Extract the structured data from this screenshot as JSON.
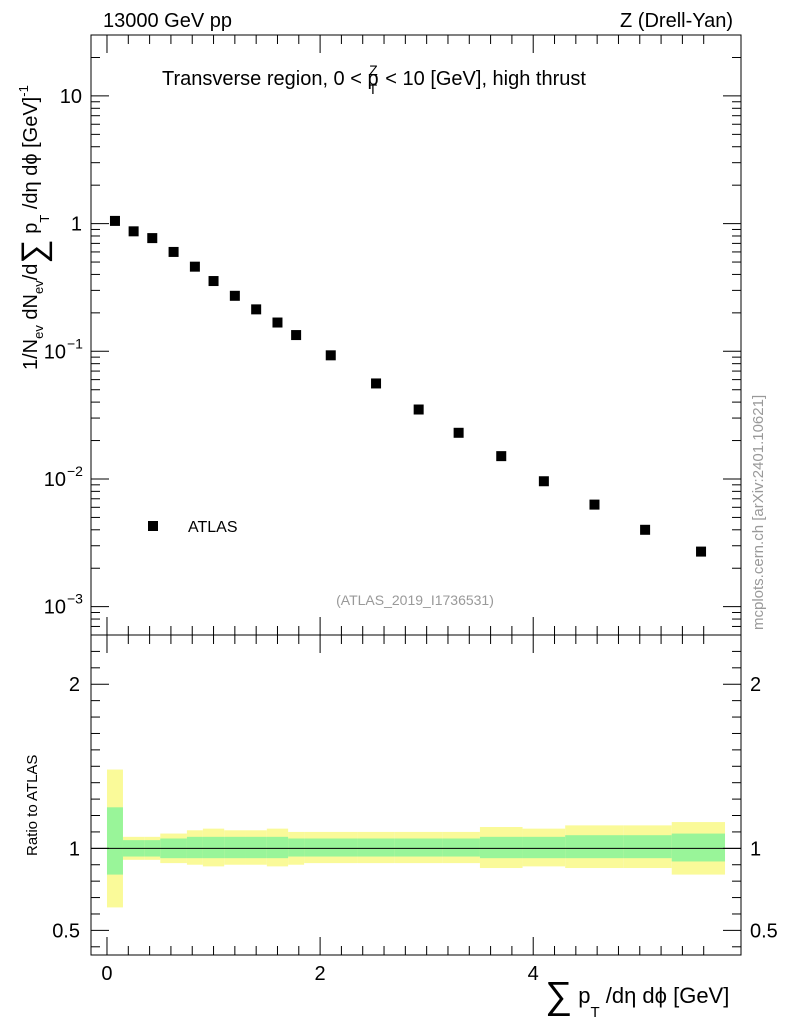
{
  "header": {
    "left": "13000 GeV pp",
    "right": "Z (Drell-Yan)"
  },
  "watermark": "mcplots.cern.ch [arXiv:2401.10621]",
  "analysis_id": "(ATLAS_2019_I1736531)",
  "chart_data": [
    {
      "type": "scatter",
      "title": "Transverse region, 0 < p_T^Z < 10 [GeV], high thrust",
      "title_parts": {
        "pre": "Transverse region, 0 < p",
        "sup": "Z",
        "sub": "T",
        "post": " < 10 [GeV], high thrust"
      },
      "ylabel": "1/N_ev dN_ev/d∑ p_T /dη dϕ [GeV]^-1",
      "ylabel_parts": {
        "a": "1/N",
        "b": "ev",
        "c": " dN",
        "d": "ev",
        "e": "/d",
        "sum": "∑",
        "f": " p",
        "g": "T",
        "h": " /dη dϕ  [GeV]",
        "i": "-1"
      },
      "yscale": "log",
      "ylim": [
        0.0006,
        30
      ],
      "y_tick_labels": {
        "10": "10",
        "1": "1",
        "0.1": "10",
        "0.01": "10",
        "0.001": "10"
      },
      "y_tick_exponents": {
        "0.1": "−1",
        "0.01": "−2",
        "0.001": "−3"
      },
      "xlim": [
        -0.15,
        5.95
      ],
      "legend": {
        "entry": "ATLAS",
        "placement": "bottom-left"
      },
      "series": [
        {
          "name": "ATLAS",
          "x": [
            0.075,
            0.25,
            0.425,
            0.625,
            0.825,
            1.0,
            1.2,
            1.4,
            1.6,
            1.775,
            2.1,
            2.525,
            2.925,
            3.3,
            3.7,
            4.1,
            4.575,
            5.05,
            5.575
          ],
          "y": [
            1.05,
            0.87,
            0.77,
            0.6,
            0.46,
            0.355,
            0.272,
            0.213,
            0.168,
            0.134,
            0.093,
            0.056,
            0.035,
            0.023,
            0.0151,
            0.0096,
            0.0063,
            0.004,
            0.0027
          ]
        }
      ]
    },
    {
      "type": "area",
      "ylabel": "Ratio to ATLAS",
      "xlabel": "∑ p_T /dη dϕ [GeV]",
      "xlabel_parts": {
        "sum": "∑",
        "a": " p",
        "b": "T",
        "c": " /dη dϕ [GeV]"
      },
      "ylim": [
        0.35,
        2.3
      ],
      "y_ticks": [
        0.5,
        1,
        2
      ],
      "y_tick_labels": [
        "0.5",
        "1",
        "2"
      ],
      "x_ticks": [
        0,
        2,
        4
      ],
      "x_tick_labels": [
        "0",
        "2",
        "4"
      ],
      "bands": {
        "edges": [
          0.0,
          0.15,
          0.35,
          0.5,
          0.75,
          0.9,
          1.1,
          1.3,
          1.5,
          1.7,
          1.85,
          2.35,
          2.7,
          3.15,
          3.5,
          3.9,
          4.3,
          4.85,
          5.3,
          5.8
        ],
        "inner_lo": [
          0.84,
          0.95,
          0.95,
          0.94,
          0.94,
          0.94,
          0.94,
          0.94,
          0.94,
          0.95,
          0.95,
          0.95,
          0.95,
          0.95,
          0.94,
          0.94,
          0.94,
          0.94,
          0.92
        ],
        "inner_hi": [
          1.25,
          1.05,
          1.05,
          1.06,
          1.07,
          1.07,
          1.07,
          1.07,
          1.07,
          1.06,
          1.06,
          1.06,
          1.06,
          1.06,
          1.07,
          1.07,
          1.08,
          1.08,
          1.09
        ],
        "outer_lo": [
          0.64,
          0.93,
          0.93,
          0.91,
          0.9,
          0.89,
          0.9,
          0.9,
          0.89,
          0.9,
          0.91,
          0.91,
          0.91,
          0.91,
          0.88,
          0.89,
          0.88,
          0.88,
          0.84
        ],
        "outer_hi": [
          1.48,
          1.07,
          1.07,
          1.09,
          1.11,
          1.12,
          1.11,
          1.11,
          1.12,
          1.1,
          1.1,
          1.1,
          1.1,
          1.1,
          1.13,
          1.12,
          1.14,
          1.14,
          1.16
        ],
        "inner_color": "#99f599",
        "outer_color": "#fafa99"
      },
      "reference_line": 1
    }
  ]
}
